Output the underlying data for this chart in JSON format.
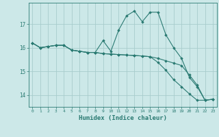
{
  "title": "",
  "xlabel": "Humidex (Indice chaleur)",
  "bg_color": "#cce8e8",
  "grid_color": "#a8cccc",
  "line_color": "#2a7a72",
  "xlim": [
    -0.5,
    23.5
  ],
  "ylim": [
    13.5,
    17.9
  ],
  "yticks": [
    14,
    15,
    16,
    17
  ],
  "xticks": [
    0,
    1,
    2,
    3,
    4,
    5,
    6,
    7,
    8,
    9,
    10,
    11,
    12,
    13,
    14,
    15,
    16,
    17,
    18,
    19,
    20,
    21,
    22,
    23
  ],
  "line1_x": [
    0,
    1,
    2,
    3,
    4,
    5,
    6,
    7,
    8,
    9,
    10,
    11,
    12,
    13,
    14,
    15,
    16,
    17,
    18,
    19,
    20,
    21,
    22,
    23
  ],
  "line1_y": [
    16.2,
    16.0,
    16.05,
    16.1,
    16.1,
    15.9,
    15.85,
    15.8,
    15.8,
    16.3,
    15.85,
    16.75,
    17.35,
    17.55,
    17.1,
    17.5,
    17.5,
    16.55,
    16.0,
    15.55,
    14.75,
    14.35,
    13.78,
    13.82
  ],
  "line2_x": [
    0,
    1,
    2,
    3,
    4,
    5,
    6,
    7,
    8,
    9,
    10,
    11,
    12,
    13,
    14,
    15,
    16,
    17,
    18,
    19,
    20,
    21,
    22,
    23
  ],
  "line2_y": [
    16.2,
    16.0,
    16.05,
    16.1,
    16.1,
    15.9,
    15.85,
    15.8,
    15.8,
    15.75,
    15.73,
    15.71,
    15.69,
    15.67,
    15.65,
    15.62,
    15.55,
    15.45,
    15.35,
    15.25,
    14.85,
    14.42,
    13.78,
    13.82
  ],
  "line3_x": [
    0,
    1,
    2,
    3,
    4,
    5,
    6,
    7,
    8,
    9,
    10,
    11,
    12,
    13,
    14,
    15,
    16,
    17,
    18,
    19,
    20,
    21,
    22,
    23
  ],
  "line3_y": [
    16.2,
    16.0,
    16.05,
    16.1,
    16.1,
    15.9,
    15.85,
    15.8,
    15.8,
    15.75,
    15.73,
    15.71,
    15.69,
    15.67,
    15.65,
    15.62,
    15.38,
    15.05,
    14.65,
    14.35,
    14.05,
    13.78,
    13.78,
    13.82
  ]
}
